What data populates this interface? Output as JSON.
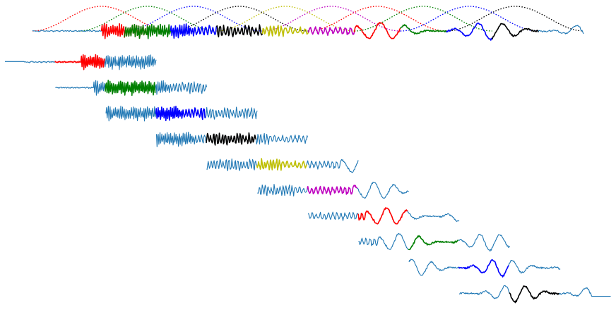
{
  "chart_data": {
    "type": "line",
    "title": "",
    "xlabel": "",
    "ylabel": "",
    "grid": false,
    "axes_visible": false,
    "legend": "none",
    "window_function": "hann",
    "n_frames": 10,
    "frame_hop_samples": 64,
    "frame_length_samples": 128,
    "signal_samples": 768,
    "colors": {
      "signal": "#1f77b4",
      "frames": [
        "#ff0000",
        "#008000",
        "#0000ff",
        "#000000",
        "#bfbf00",
        "#bf00bf",
        "#ff0000",
        "#008000",
        "#0000ff",
        "#000000"
      ]
    },
    "series": [
      {
        "role": "signal",
        "segments": [
          {
            "x_range": [
              0,
              96
            ],
            "kind": "noise",
            "amplitude": 0.06
          },
          {
            "x_range": [
              96,
              224
            ],
            "kind": "tone",
            "amplitude": 0.55,
            "period": 3
          },
          {
            "x_range": [
              224,
              352
            ],
            "kind": "tone",
            "amplitude": 0.45,
            "period": 5
          },
          {
            "x_range": [
              352,
              450
            ],
            "kind": "tone",
            "amplitude": 0.3,
            "period": 7
          },
          {
            "x_range": [
              450,
              768
            ],
            "kind": "wave",
            "amplitude": 0.8,
            "period": 34
          }
        ]
      }
    ]
  }
}
